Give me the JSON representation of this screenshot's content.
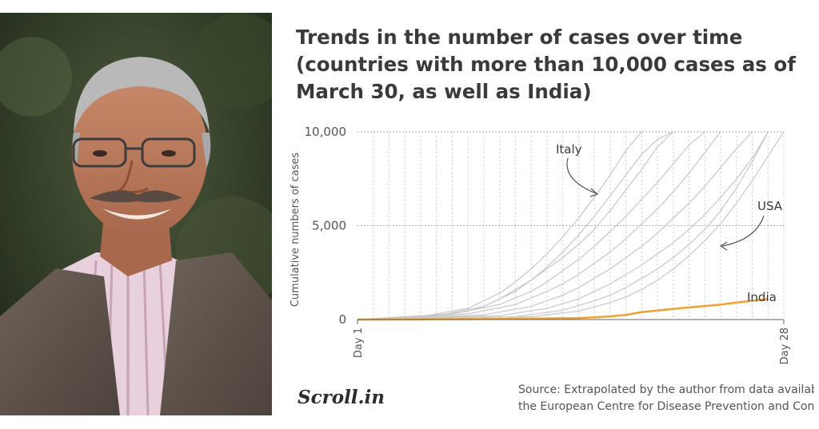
{
  "title_lines": [
    "Trends in the number of cases over time",
    "(countries with more than 10,000 cases as of",
    "March 30, as well as India)"
  ],
  "brand": "Scroll.in",
  "source_lines": [
    "Source: Extrapolated by the author from data availab",
    "the European Centre for Disease Prevention and Con"
  ],
  "photo": {
    "description_icon": "portrait-photo"
  },
  "colors": {
    "india": "#f0a030",
    "other": "#c8c8c8",
    "text": "#3a3a3a",
    "grid": "#cccccc"
  },
  "chart_data": {
    "type": "line",
    "title": "Trends in the number of cases over time (countries with more than 10,000 cases as of March 30, as well as India)",
    "ylabel": "Cumulative numbers of cases",
    "xlabel": "",
    "x_ticks": [
      "Day 1",
      "Day 28"
    ],
    "y_ticks": [
      0,
      5000,
      10000
    ],
    "y_tick_labels": [
      "0",
      "5,000",
      "10,000"
    ],
    "xlim": [
      1,
      28
    ],
    "ylim": [
      0,
      10000
    ],
    "grid": "dotted vertical and horizontal",
    "annotations": [
      "Italy",
      "USA",
      "India"
    ],
    "series": [
      {
        "name": "India",
        "highlight": true,
        "x": [
          1,
          5,
          10,
          15,
          16,
          17,
          18,
          19,
          20,
          21,
          22,
          23,
          24,
          25,
          26,
          27
        ],
        "y": [
          0,
          10,
          30,
          80,
          120,
          170,
          250,
          400,
          480,
          570,
          650,
          720,
          800,
          900,
          1000,
          1100
        ]
      },
      {
        "name": "",
        "x": [
          1,
          4,
          6,
          8,
          9,
          10,
          11,
          12,
          13,
          14,
          15,
          16,
          17,
          18,
          19,
          20,
          21
        ],
        "y": [
          0,
          80,
          200,
          450,
          700,
          1100,
          1600,
          2100,
          2700,
          3300,
          4000,
          4800,
          5800,
          6900,
          8000,
          9200,
          10000
        ]
      },
      {
        "name": "",
        "x": [
          1,
          5,
          8,
          10,
          11,
          12,
          13,
          14,
          15,
          16,
          17,
          18,
          19
        ],
        "y": [
          0,
          150,
          600,
          1400,
          2000,
          2700,
          3500,
          4400,
          5400,
          6500,
          7700,
          9000,
          10000
        ]
      },
      {
        "name": "",
        "x": [
          1,
          6,
          9,
          11,
          12,
          13,
          14,
          15,
          16,
          17,
          18,
          19,
          20,
          21
        ],
        "y": [
          0,
          200,
          700,
          1500,
          2100,
          2800,
          3600,
          4500,
          5500,
          6600,
          7700,
          8800,
          9600,
          10000
        ]
      },
      {
        "name": "",
        "x": [
          1,
          7,
          10,
          12,
          13,
          14,
          15,
          16,
          17,
          18,
          19,
          20,
          21,
          22,
          23
        ],
        "y": [
          0,
          300,
          800,
          1500,
          2000,
          2600,
          3200,
          3900,
          4700,
          5500,
          6400,
          7300,
          8300,
          9300,
          10000
        ]
      },
      {
        "name": "",
        "x": [
          1,
          8,
          11,
          13,
          14,
          15,
          16,
          17,
          18,
          19,
          20,
          21,
          22,
          23,
          24
        ],
        "y": [
          0,
          300,
          800,
          1500,
          1900,
          2400,
          3000,
          3600,
          4300,
          5100,
          5900,
          6800,
          7800,
          8900,
          10000
        ]
      },
      {
        "name": "",
        "x": [
          1,
          9,
          12,
          14,
          15,
          16,
          17,
          18,
          19,
          20,
          21,
          22,
          23,
          24,
          25,
          26
        ],
        "y": [
          0,
          250,
          700,
          1300,
          1700,
          2200,
          2700,
          3300,
          3900,
          4600,
          5400,
          6200,
          7100,
          8100,
          9100,
          10000
        ]
      },
      {
        "name": "",
        "x": [
          1,
          10,
          13,
          15,
          16,
          17,
          18,
          19,
          20,
          21,
          22,
          23,
          24,
          25,
          26,
          27
        ],
        "y": [
          0,
          200,
          600,
          1100,
          1500,
          1900,
          2400,
          2900,
          3500,
          4100,
          4800,
          5600,
          6500,
          7500,
          8600,
          10000
        ]
      },
      {
        "name": "",
        "x": [
          1,
          11,
          14,
          16,
          17,
          18,
          19,
          20,
          21,
          22,
          23,
          24,
          25,
          26,
          27
        ],
        "y": [
          0,
          150,
          500,
          1000,
          1300,
          1700,
          2200,
          2700,
          3300,
          4000,
          4800,
          5800,
          7000,
          8400,
          10000
        ]
      },
      {
        "name": "",
        "x": [
          1,
          12,
          15,
          17,
          18,
          19,
          20,
          21,
          22,
          23,
          24,
          25,
          26,
          27,
          28
        ],
        "y": [
          0,
          150,
          450,
          900,
          1200,
          1600,
          2100,
          2700,
          3400,
          4200,
          5100,
          6200,
          7400,
          8700,
          10000
        ]
      }
    ]
  }
}
